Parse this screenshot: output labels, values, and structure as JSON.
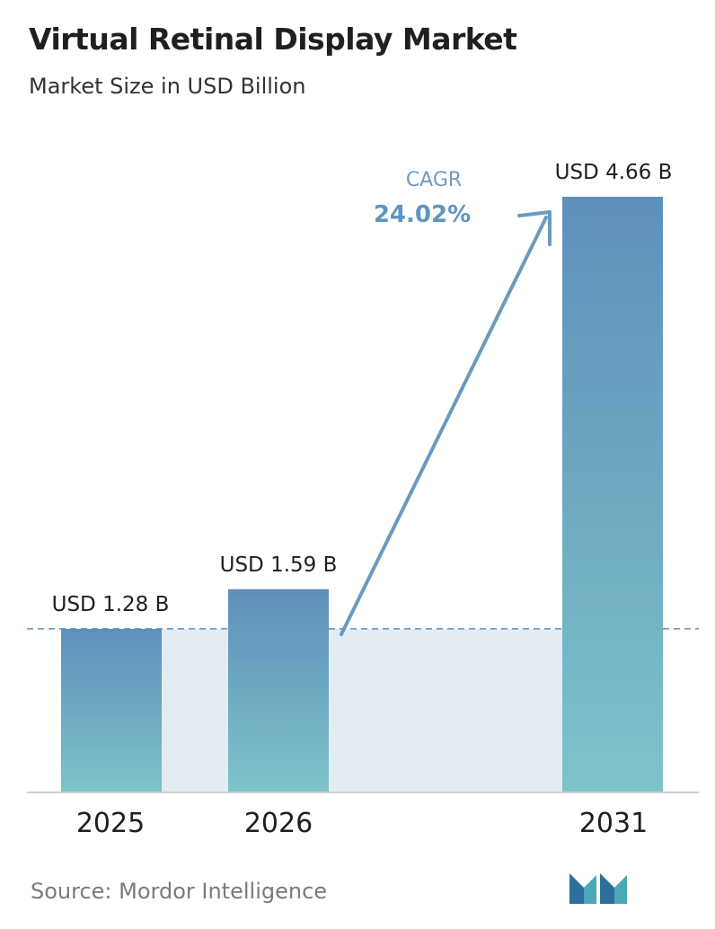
{
  "header": {
    "title": "Virtual Retinal Display Market",
    "subtitle": "Market Size in USD Billion"
  },
  "chart_data": {
    "type": "bar",
    "categories": [
      "2025",
      "2026",
      "2031"
    ],
    "values": [
      1.28,
      1.59,
      4.66
    ],
    "value_labels": [
      "USD 1.28 B",
      "USD 1.59 B",
      "USD 4.66 B"
    ],
    "title": "Virtual Retinal Display Market",
    "subtitle": "Market Size in USD Billion",
    "xlabel": "",
    "ylabel": "",
    "ylim": [
      0,
      4.66
    ],
    "grid": false,
    "legend": "none",
    "annotations": {
      "cagr_label": "CAGR",
      "cagr_value": "24.02%"
    },
    "colors": {
      "bar_top": "#5e8fbb",
      "bar_bottom": "#7ec3c9",
      "band": "#e3ebf3",
      "arrow": "#6a9ac0",
      "baseline": "#cfcfcf",
      "dashed": "#5e8fbb"
    }
  },
  "footer": {
    "source": "Source:  Mordor Intelligence",
    "logo_icon": "mordor-intelligence-logo-icon"
  }
}
